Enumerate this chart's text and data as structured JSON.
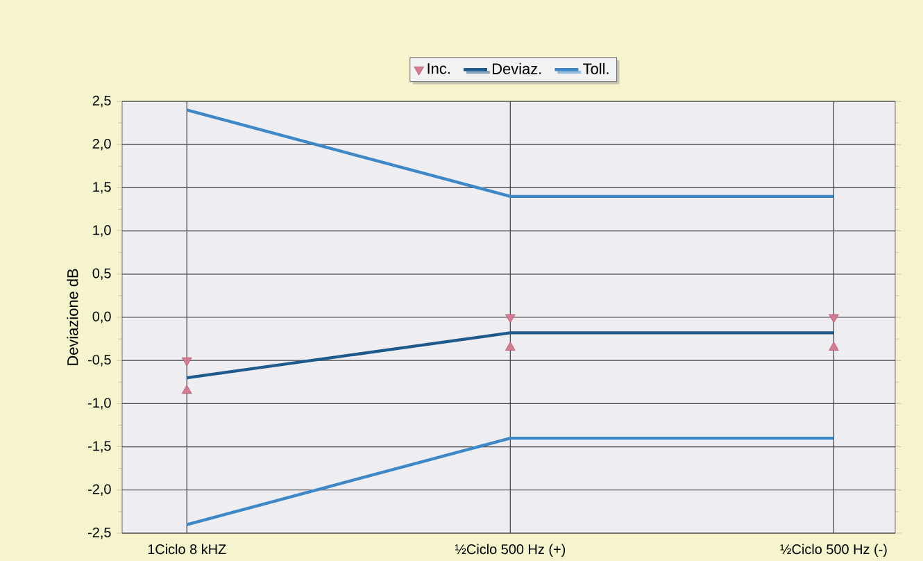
{
  "chart_data": {
    "type": "line",
    "ylabel": "Deviazione dB",
    "categories": [
      "1Ciclo 8 kHZ",
      "½Ciclo 500 Hz (+)",
      "½Ciclo 500 Hz (-)"
    ],
    "series": [
      {
        "name": "Inc.",
        "type": "scatter",
        "marker": "triangle down",
        "color": "#c0506e",
        "values": [
          -0.5,
          0.0,
          0.0
        ]
      },
      {
        "type": "scatter",
        "marker": "triangle",
        "color": "#c0506e",
        "values": [
          -0.85,
          -0.35,
          -0.35
        ]
      },
      {
        "name": "Deviaz.",
        "color": "#1f5a8c",
        "values": [
          -0.7,
          -0.18,
          -0.18
        ]
      },
      {
        "name": "Toll.",
        "color": "#3f88c8",
        "values": [
          2.4,
          1.4,
          1.4
        ]
      },
      {
        "color": "#3f88c8",
        "values": [
          -2.4,
          -1.4,
          -1.4
        ]
      }
    ],
    "ylim": [
      -2.5,
      2.5
    ],
    "yticks": [
      {
        "value": -2.5,
        "label": "-2,5"
      },
      {
        "value": -2.0,
        "label": "-2,0"
      },
      {
        "value": -1.5,
        "label": "-1,5"
      },
      {
        "value": -1.0,
        "label": "-1,0"
      },
      {
        "value": -0.5,
        "label": "-0,5"
      },
      {
        "value": 0.0,
        "label": "0,0"
      },
      {
        "value": 0.5,
        "label": "0,5"
      },
      {
        "value": 1.0,
        "label": "1,0"
      },
      {
        "value": 1.5,
        "label": "1,5"
      },
      {
        "value": 2.0,
        "label": "2,0"
      },
      {
        "value": 2.5,
        "label": "2,5"
      }
    ],
    "grid": true,
    "legend": "top"
  }
}
